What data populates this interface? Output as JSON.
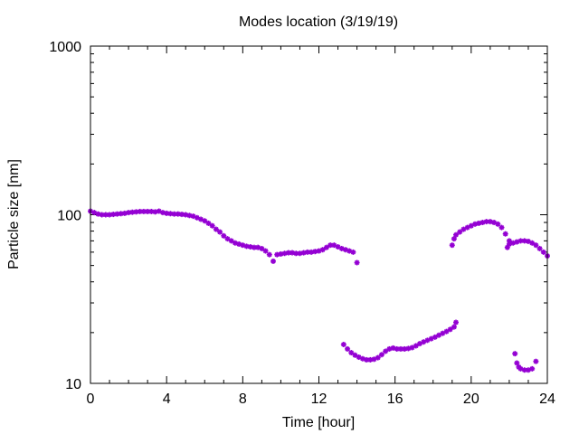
{
  "chart_data": {
    "type": "scatter",
    "title": "Modes location (3/19/19)",
    "xlabel": "Time [hour]",
    "ylabel": "Particle size [nm]",
    "xlim": [
      0,
      24
    ],
    "ylim": [
      10,
      1000
    ],
    "yscale": "log",
    "xticks": [
      0,
      4,
      8,
      12,
      16,
      20,
      24
    ],
    "xtick_labels": [
      "0",
      "4",
      "8",
      "12",
      "16",
      "20",
      "24"
    ],
    "yticks": [
      10,
      100,
      1000
    ],
    "ytick_labels": [
      "10",
      "100",
      "1000"
    ],
    "grid": false,
    "marker_color": "#9400d3",
    "series": [
      {
        "points": [
          [
            0.0,
            105
          ],
          [
            0.2,
            103
          ],
          [
            0.4,
            101
          ],
          [
            0.6,
            100
          ],
          [
            0.8,
            100
          ],
          [
            1.0,
            100
          ],
          [
            1.2,
            100.5
          ],
          [
            1.4,
            101
          ],
          [
            1.6,
            101.5
          ],
          [
            1.8,
            102
          ],
          [
            2.0,
            103
          ],
          [
            2.2,
            103.5
          ],
          [
            2.4,
            104
          ],
          [
            2.6,
            104.5
          ],
          [
            2.8,
            104.5
          ],
          [
            3.0,
            104.5
          ],
          [
            3.2,
            104.5
          ],
          [
            3.4,
            104
          ],
          [
            3.6,
            105
          ],
          [
            3.8,
            103
          ],
          [
            4.0,
            102
          ],
          [
            4.2,
            101.5
          ],
          [
            4.4,
            101
          ],
          [
            4.6,
            101
          ],
          [
            4.8,
            100.5
          ],
          [
            5.0,
            100
          ],
          [
            5.2,
            99
          ],
          [
            5.4,
            98
          ],
          [
            5.6,
            96
          ],
          [
            5.8,
            94
          ],
          [
            6.0,
            92
          ],
          [
            6.2,
            89
          ],
          [
            6.4,
            86
          ],
          [
            6.6,
            82
          ],
          [
            6.8,
            79
          ],
          [
            7.0,
            75
          ],
          [
            7.2,
            72
          ],
          [
            7.4,
            70
          ],
          [
            7.6,
            68
          ],
          [
            7.8,
            67
          ],
          [
            8.0,
            66
          ],
          [
            8.2,
            65
          ],
          [
            8.4,
            64.5
          ],
          [
            8.6,
            64
          ],
          [
            8.8,
            64
          ],
          [
            9.0,
            63
          ],
          [
            9.2,
            61
          ],
          [
            9.4,
            58
          ],
          [
            9.6,
            53
          ],
          [
            9.8,
            58
          ],
          [
            10.0,
            58.5
          ],
          [
            10.2,
            59
          ],
          [
            10.4,
            59.5
          ],
          [
            10.6,
            59.5
          ],
          [
            10.8,
            59
          ],
          [
            11.0,
            59
          ],
          [
            11.2,
            59.5
          ],
          [
            11.4,
            60
          ],
          [
            11.6,
            60
          ],
          [
            11.8,
            60.5
          ],
          [
            12.0,
            61
          ],
          [
            12.2,
            62
          ],
          [
            12.4,
            64
          ],
          [
            12.6,
            66
          ],
          [
            12.8,
            66
          ],
          [
            13.0,
            64.5
          ],
          [
            13.2,
            63
          ],
          [
            13.4,
            62
          ],
          [
            13.6,
            61
          ],
          [
            13.8,
            60
          ],
          [
            14.0,
            52
          ],
          [
            13.3,
            17
          ],
          [
            13.5,
            16
          ],
          [
            13.7,
            15.2
          ],
          [
            13.9,
            14.7
          ],
          [
            14.1,
            14.3
          ],
          [
            14.3,
            14
          ],
          [
            14.5,
            13.8
          ],
          [
            14.7,
            13.8
          ],
          [
            14.9,
            13.9
          ],
          [
            15.1,
            14.2
          ],
          [
            15.3,
            14.8
          ],
          [
            15.5,
            15.5
          ],
          [
            15.7,
            16
          ],
          [
            15.9,
            16.2
          ],
          [
            16.1,
            16
          ],
          [
            16.3,
            16
          ],
          [
            16.5,
            16
          ],
          [
            16.7,
            16.1
          ],
          [
            16.9,
            16.3
          ],
          [
            17.1,
            16.7
          ],
          [
            17.3,
            17.2
          ],
          [
            17.5,
            17.6
          ],
          [
            17.7,
            18
          ],
          [
            17.9,
            18.4
          ],
          [
            18.1,
            18.8
          ],
          [
            18.3,
            19.3
          ],
          [
            18.5,
            19.8
          ],
          [
            18.7,
            20.3
          ],
          [
            18.9,
            20.9
          ],
          [
            19.1,
            21.6
          ],
          [
            19.2,
            23
          ],
          [
            19.0,
            66
          ],
          [
            19.1,
            72
          ],
          [
            19.2,
            76
          ],
          [
            19.4,
            79
          ],
          [
            19.6,
            82
          ],
          [
            19.8,
            84
          ],
          [
            20.0,
            86
          ],
          [
            20.2,
            88
          ],
          [
            20.4,
            89
          ],
          [
            20.6,
            90
          ],
          [
            20.8,
            91
          ],
          [
            21.0,
            91
          ],
          [
            21.2,
            90
          ],
          [
            21.4,
            88
          ],
          [
            21.6,
            84
          ],
          [
            21.8,
            77
          ],
          [
            22.0,
            70
          ],
          [
            21.9,
            64
          ],
          [
            22.0,
            67
          ],
          [
            22.2,
            68
          ],
          [
            22.4,
            69
          ],
          [
            22.6,
            70
          ],
          [
            22.8,
            70
          ],
          [
            23.0,
            69.5
          ],
          [
            23.2,
            68
          ],
          [
            23.4,
            66
          ],
          [
            23.6,
            63
          ],
          [
            23.8,
            60
          ],
          [
            24.0,
            57
          ],
          [
            22.3,
            15
          ],
          [
            22.4,
            13.2
          ],
          [
            22.5,
            12.5
          ],
          [
            22.6,
            12.2
          ],
          [
            22.8,
            12
          ],
          [
            23.0,
            12
          ],
          [
            23.2,
            12.2
          ],
          [
            23.4,
            13.5
          ]
        ]
      }
    ]
  }
}
